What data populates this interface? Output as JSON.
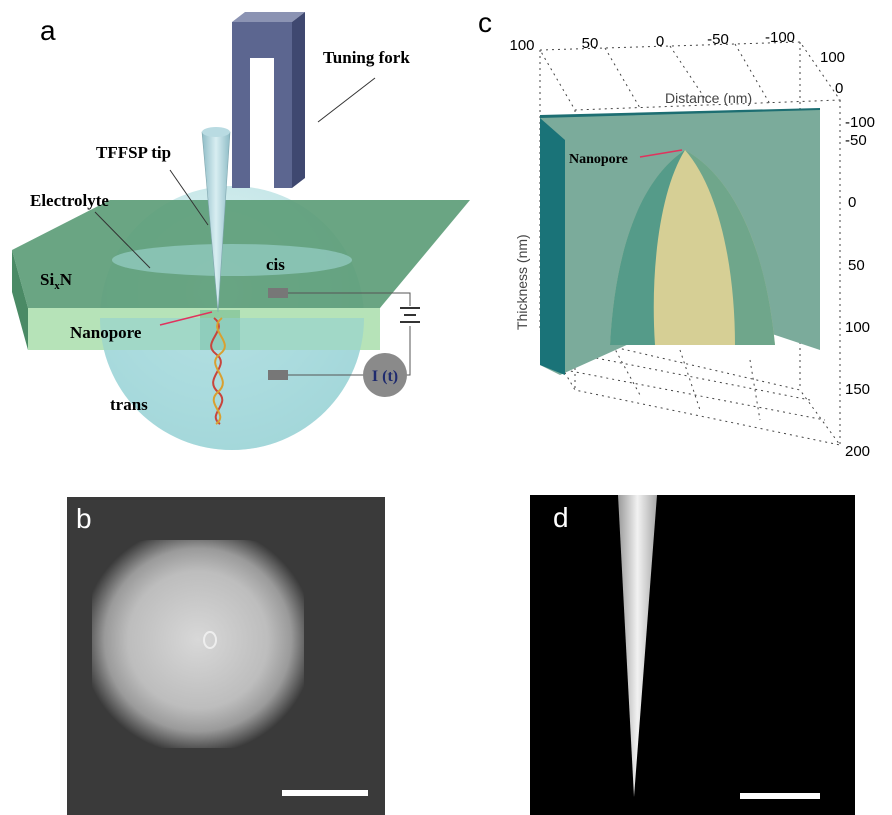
{
  "panel_a": {
    "label": "a",
    "tuning_fork": "Tuning fork",
    "tip": "TFFSP tip",
    "electrolyte": "Electrolyte",
    "membrane": {
      "base": "Si",
      "subscript": "x",
      "rest": "N"
    },
    "cis": "cis",
    "nanopore": "Nanopore",
    "trans": "trans",
    "current": "I (t)"
  },
  "panel_b": {
    "label": "b"
  },
  "panel_c": {
    "label": "c",
    "x_axis_label": "Distance (nm)",
    "y_axis_label": "Thickness (nm)",
    "nanopore": "Nanopore",
    "x_ticks": [
      100,
      50,
      0,
      -50,
      -100
    ],
    "depth_ticks": [
      100,
      0,
      -100
    ],
    "thickness_ticks": [
      -50,
      0,
      50,
      100,
      150,
      200
    ]
  },
  "panel_d": {
    "label": "d"
  }
}
